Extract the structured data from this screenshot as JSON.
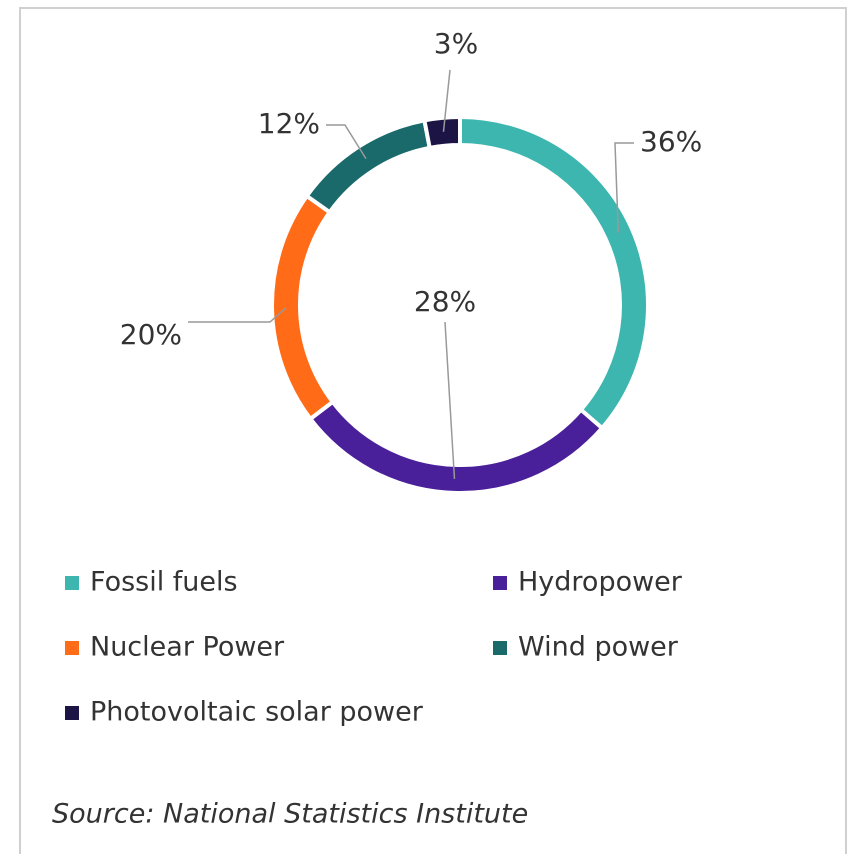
{
  "chart_data": {
    "type": "pie",
    "donut": true,
    "categories": [
      "Fossil fuels",
      "Hydropower",
      "Nuclear Power",
      "Wind power",
      "Photovoltaic solar power"
    ],
    "values": [
      36,
      28,
      20,
      12,
      3
    ],
    "value_labels": [
      "36%",
      "28%",
      "20%",
      "12%",
      "3%"
    ],
    "colors": [
      "#3db6b0",
      "#4a1f9a",
      "#ff6b17",
      "#1a6a6b",
      "#1d1446"
    ],
    "source": "Source: National Statistics Institute"
  }
}
